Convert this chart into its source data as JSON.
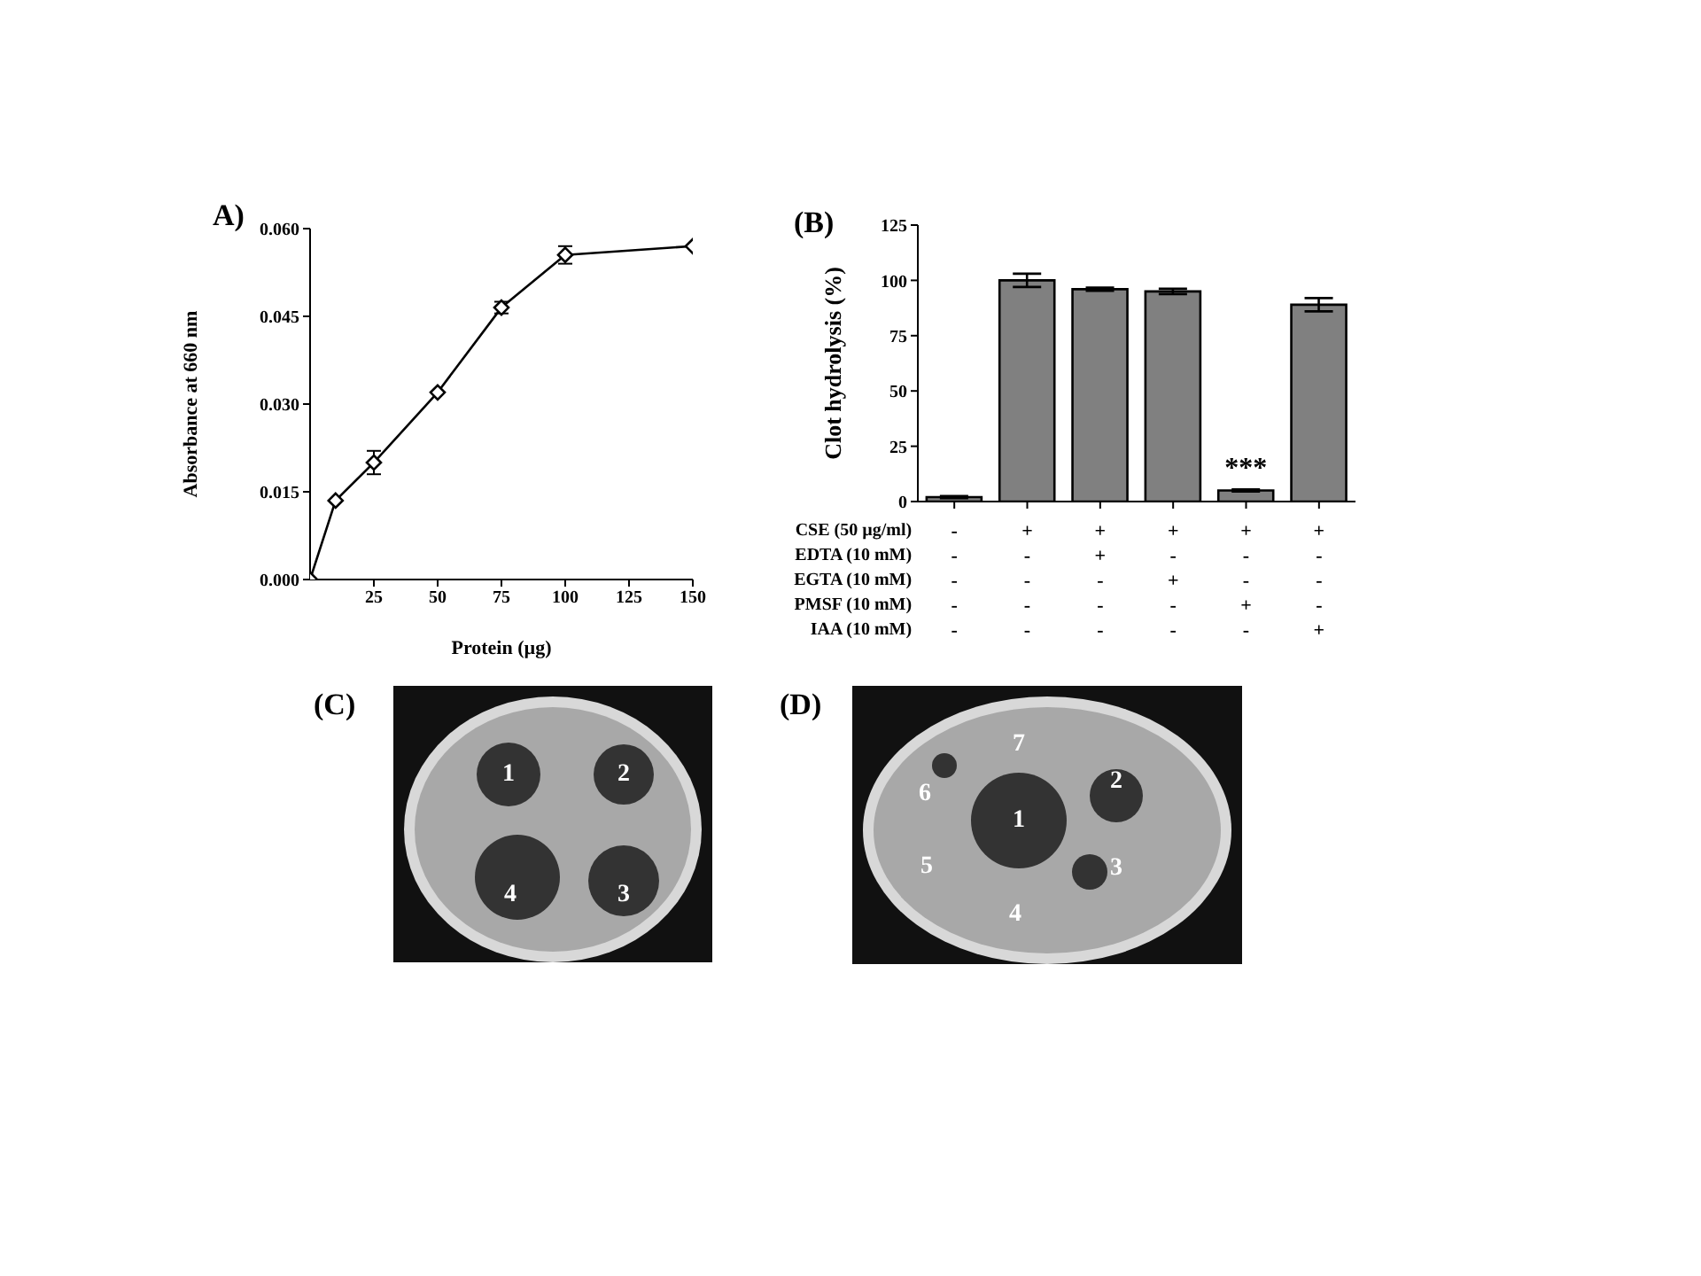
{
  "chart_data": [
    {
      "type": "line",
      "title": "A)",
      "xlabel": "Protein (µg)",
      "ylabel": "Absorbance at 660 nm",
      "x": [
        0,
        10,
        25,
        50,
        75,
        100,
        150
      ],
      "series": [
        {
          "color": "#000000",
          "values": [
            0,
            0.0135,
            0.02,
            0.032,
            0.0465,
            0.0555,
            0.057
          ],
          "errors": [
            null,
            null,
            0.002,
            null,
            0.001,
            0.0015,
            null
          ]
        }
      ],
      "xlim": [
        0,
        150
      ],
      "xticks": [
        25,
        50,
        75,
        100,
        125,
        150
      ],
      "ylim": [
        0,
        0.06
      ],
      "yticks": [
        {
          "value": 0,
          "label": "0.000"
        },
        {
          "value": 0.015,
          "label": "0.015"
        },
        {
          "value": 0.03,
          "label": "0.030"
        },
        {
          "value": 0.045,
          "label": "0.045"
        },
        {
          "value": 0.06,
          "label": "0.060"
        }
      ],
      "marker": "diamond",
      "line_style": "solid"
    },
    {
      "type": "bar",
      "title": "(B)",
      "ylabel": "Clot hydrolysis (%)",
      "categories": [
        "-\n-\n-\n-\n-",
        "+\n-\n-\n-\n-",
        "+\n+\n-\n-\n-",
        "+\n-\n+\n-\n-",
        "+\n-\n-\n+\n-",
        "+\n-\n-\n-\n+"
      ],
      "values": [
        2,
        100,
        96,
        95,
        5,
        89
      ],
      "errors": [
        0.5,
        3,
        0.7,
        1.2,
        0.5,
        3
      ],
      "color": "#808080",
      "value_labels": [
        null,
        null,
        null,
        null,
        "***",
        null
      ],
      "annotations": [
        "CSE (50 µg/ml)",
        "EDTA (10 mM)",
        "EGTA (10 mM)",
        "PMSF (10 mM)",
        "IAA (10 mM)"
      ],
      "ylim": [
        0,
        125
      ],
      "yticks": [
        0,
        25,
        50,
        75,
        100,
        125
      ]
    },
    {
      "type": "other",
      "annotations": [
        "(C)",
        "1",
        "2",
        "3",
        "4"
      ]
    },
    {
      "type": "other",
      "annotations": [
        "(D)",
        "1",
        "2",
        "3",
        "4",
        "5",
        "6",
        "7"
      ]
    }
  ]
}
